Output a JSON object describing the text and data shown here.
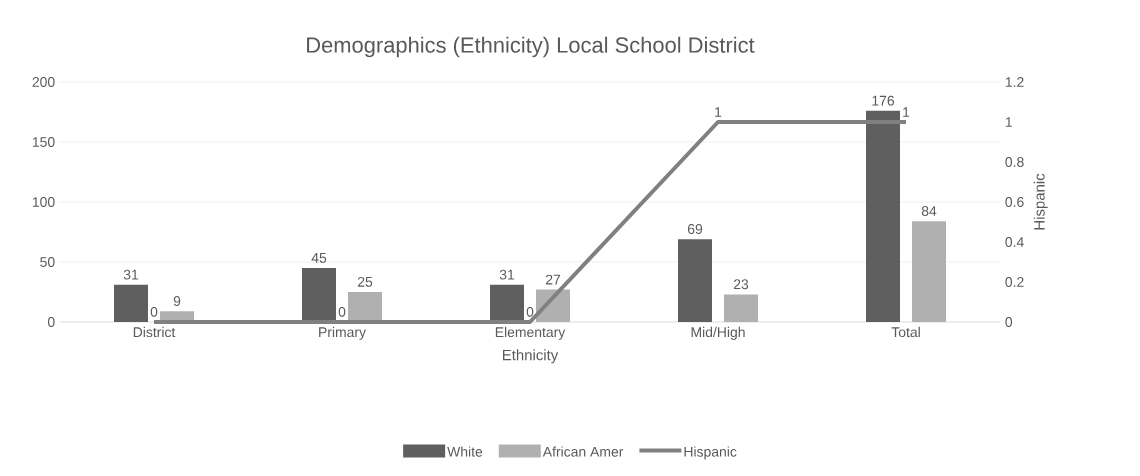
{
  "chart_data": {
    "type": "bar",
    "title": "Demographics (Ethnicity) Local School District",
    "categories": [
      "District",
      "Primary",
      "Elementary",
      "Mid/High",
      "Total"
    ],
    "xlabel": "Ethnicity",
    "y2label": "Hispanic",
    "series": [
      {
        "name": "White",
        "color": "#5f5f5f",
        "values": [
          31,
          45,
          31,
          69,
          176
        ]
      },
      {
        "name": "African Amer",
        "color": "#b0b0b0",
        "values": [
          9,
          25,
          27,
          23,
          84
        ]
      },
      {
        "name": "Hispanic",
        "type": "line",
        "axis": "y2",
        "color": "#808080",
        "values": [
          0,
          0,
          0,
          1,
          1
        ]
      }
    ],
    "ylim": [
      0,
      200
    ],
    "yticks": [
      0,
      50,
      100,
      150,
      200
    ],
    "y2lim": [
      0,
      1.2
    ],
    "y2ticks": [
      0,
      0.2,
      0.4,
      0.6,
      0.8,
      1,
      1.2
    ],
    "grid": "y",
    "legend": "bottom",
    "data_labels": true
  }
}
